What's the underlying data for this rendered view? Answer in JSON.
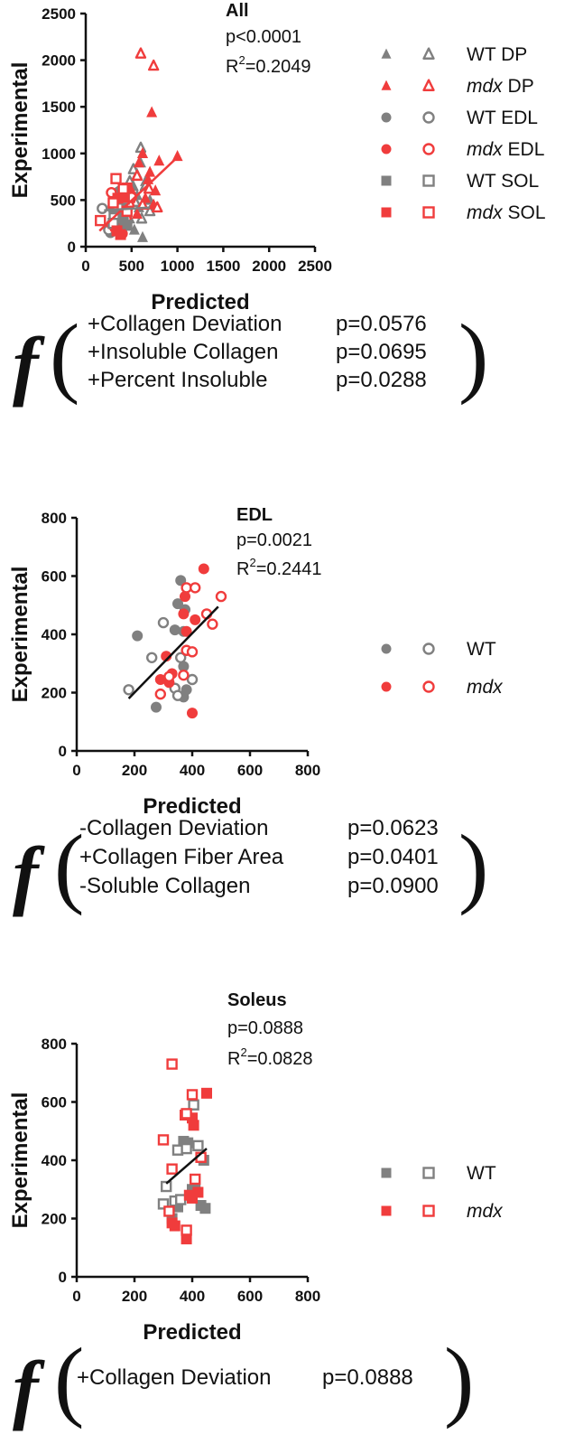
{
  "colors": {
    "wt": "#808080",
    "mdx": "#f03c3c",
    "axis": "#111111"
  },
  "chart_data": [
    {
      "id": "all",
      "type": "scatter",
      "title": "All",
      "p_value": "p<0.0001",
      "r2_label": "R",
      "r2_exp": "2",
      "r2_value": "=0.2049",
      "xlabel": "Predicted",
      "ylabel": "Experimental",
      "xlim": [
        0,
        2500
      ],
      "ylim": [
        0,
        2500
      ],
      "xticks": [
        "0",
        "500",
        "1000",
        "1500",
        "2000",
        "2500"
      ],
      "yticks": [
        "0",
        "500",
        "1000",
        "1500",
        "2000",
        "2500"
      ],
      "fit_lines": [
        {
          "group": "mdx",
          "x": [
            150,
            1000
          ],
          "y": [
            170,
            960
          ]
        },
        {
          "group": "wt",
          "x": [
            200,
            700
          ],
          "y": [
            390,
            420
          ]
        }
      ],
      "legend": [
        {
          "genotype": "WT",
          "rest": " DP",
          "shape": "triangle",
          "group": "wt",
          "italic": false
        },
        {
          "genotype": "mdx",
          "rest": " DP",
          "shape": "triangle",
          "group": "mdx",
          "italic": true
        },
        {
          "genotype": "WT",
          "rest": " EDL",
          "shape": "circle",
          "group": "wt",
          "italic": false
        },
        {
          "genotype": "mdx",
          "rest": " EDL",
          "shape": "circle",
          "group": "mdx",
          "italic": true
        },
        {
          "genotype": "WT",
          "rest": " SOL",
          "shape": "square",
          "group": "wt",
          "italic": false
        },
        {
          "genotype": "mdx",
          "rest": " SOL",
          "shape": "square",
          "group": "mdx",
          "italic": true
        }
      ],
      "series": [
        {
          "name": "WT DP filled",
          "shape": "triangle",
          "group": "wt",
          "filled": true,
          "points": [
            [
              480,
              300
            ],
            [
              520,
              650
            ],
            [
              560,
              550
            ],
            [
              600,
              900
            ],
            [
              620,
              1000
            ],
            [
              650,
              700
            ],
            [
              700,
              500
            ],
            [
              580,
              420
            ],
            [
              450,
              250
            ],
            [
              530,
              180
            ],
            [
              620,
              100
            ],
            [
              560,
              780
            ]
          ]
        },
        {
          "name": "WT DP open",
          "shape": "triangle",
          "group": "wt",
          "filled": false,
          "points": [
            [
              520,
              830
            ],
            [
              600,
              1060
            ],
            [
              650,
              650
            ],
            [
              700,
              380
            ],
            [
              480,
              700
            ],
            [
              540,
              480
            ],
            [
              610,
              300
            ]
          ]
        },
        {
          "name": "mdx DP filled",
          "shape": "triangle",
          "group": "mdx",
          "filled": true,
          "points": [
            [
              580,
              900
            ],
            [
              620,
              1000
            ],
            [
              700,
              800
            ],
            [
              760,
              600
            ],
            [
              720,
              1440
            ],
            [
              800,
              920
            ],
            [
              650,
              520
            ],
            [
              560,
              350
            ],
            [
              680,
              720
            ],
            [
              1000,
              970
            ],
            [
              500,
              600
            ],
            [
              740,
              450
            ]
          ]
        },
        {
          "name": "mdx DP open",
          "shape": "triangle",
          "group": "mdx",
          "filled": false,
          "points": [
            [
              600,
              2070
            ],
            [
              740,
              1940
            ],
            [
              690,
              620
            ],
            [
              560,
              760
            ],
            [
              780,
              420
            ],
            [
              480,
              520
            ],
            [
              620,
              450
            ]
          ]
        },
        {
          "name": "WT EDL filled",
          "shape": "circle",
          "group": "wt",
          "filled": true,
          "points": [
            [
              360,
              590
            ],
            [
              370,
              490
            ],
            [
              300,
              400
            ],
            [
              270,
              150
            ],
            [
              380,
              200
            ],
            [
              420,
              300
            ],
            [
              350,
              250
            ]
          ]
        },
        {
          "name": "WT EDL open",
          "shape": "circle",
          "group": "wt",
          "filled": false,
          "points": [
            [
              180,
              410
            ],
            [
              300,
              440
            ],
            [
              390,
              420
            ],
            [
              450,
              420
            ],
            [
              380,
              240
            ],
            [
              250,
              180
            ],
            [
              360,
              310
            ],
            [
              330,
              260
            ]
          ]
        },
        {
          "name": "mdx EDL filled",
          "shape": "circle",
          "group": "mdx",
          "filled": true,
          "points": [
            [
              440,
              620
            ],
            [
              300,
              560
            ],
            [
              400,
              140
            ],
            [
              360,
              450
            ],
            [
              310,
              260
            ],
            [
              420,
              450
            ],
            [
              280,
              240
            ]
          ]
        },
        {
          "name": "mdx EDL open",
          "shape": "circle",
          "group": "mdx",
          "filled": false,
          "points": [
            [
              500,
              530
            ],
            [
              410,
              560
            ],
            [
              470,
              440
            ],
            [
              320,
              200
            ],
            [
              390,
              350
            ],
            [
              280,
              580
            ],
            [
              440,
              300
            ]
          ]
        },
        {
          "name": "WT SOL filled",
          "shape": "square",
          "group": "wt",
          "filled": true,
          "points": [
            [
              380,
              470
            ],
            [
              450,
              230
            ],
            [
              410,
              330
            ],
            [
              320,
              400
            ],
            [
              430,
              230
            ]
          ]
        },
        {
          "name": "WT SOL open",
          "shape": "square",
          "group": "wt",
          "filled": false,
          "points": [
            [
              400,
              590
            ],
            [
              310,
              310
            ],
            [
              350,
              430
            ],
            [
              300,
              250
            ],
            [
              420,
              510
            ]
          ]
        },
        {
          "name": "mdx SOL filled",
          "shape": "square",
          "group": "mdx",
          "filled": true,
          "points": [
            [
              450,
              630
            ],
            [
              340,
              170
            ],
            [
              380,
              130
            ],
            [
              420,
              530
            ],
            [
              350,
              520
            ]
          ]
        },
        {
          "name": "mdx SOL open",
          "shape": "square",
          "group": "mdx",
          "filled": false,
          "points": [
            [
              330,
              730
            ],
            [
              160,
              280
            ],
            [
              410,
              620
            ],
            [
              300,
              470
            ],
            [
              450,
              380
            ]
          ]
        }
      ],
      "formula": {
        "symbol": "f",
        "terms": [
          {
            "label": "+Collagen Deviation",
            "p": "p=0.0576"
          },
          {
            "label": "+Insoluble Collagen",
            "p": "p=0.0695"
          },
          {
            "label": "+Percent Insoluble",
            "p": "p=0.0288"
          }
        ]
      }
    },
    {
      "id": "edl",
      "type": "scatter",
      "title": "EDL",
      "p_value": "p=0.0021",
      "r2_label": "R",
      "r2_exp": "2",
      "r2_value": "=0.2441",
      "xlabel": "Predicted",
      "ylabel": "Experimental",
      "xlim": [
        0,
        800
      ],
      "ylim": [
        0,
        800
      ],
      "xticks": [
        "0",
        "200",
        "400",
        "600",
        "800"
      ],
      "yticks": [
        "0",
        "200",
        "400",
        "600",
        "800"
      ],
      "fit_lines": [
        {
          "group": "all",
          "x": [
            180,
            490
          ],
          "y": [
            180,
            495
          ]
        }
      ],
      "legend": [
        {
          "genotype": "WT",
          "rest": "",
          "shape": "circle",
          "group": "wt",
          "italic": false
        },
        {
          "genotype": "mdx",
          "rest": "",
          "shape": "circle",
          "group": "mdx",
          "italic": true
        }
      ],
      "series": [
        {
          "name": "WT filled",
          "shape": "circle",
          "group": "wt",
          "filled": true,
          "points": [
            [
              210,
              395
            ],
            [
              360,
              585
            ],
            [
              350,
              505
            ],
            [
              375,
              485
            ],
            [
              340,
              415
            ],
            [
              370,
              410
            ],
            [
              275,
              150
            ],
            [
              370,
              185
            ],
            [
              380,
              210
            ],
            [
              370,
              290
            ]
          ]
        },
        {
          "name": "WT open",
          "shape": "circle",
          "group": "wt",
          "filled": false,
          "points": [
            [
              180,
              210
            ],
            [
              300,
              440
            ],
            [
              260,
              320
            ],
            [
              400,
              245
            ],
            [
              340,
              215
            ],
            [
              350,
              190
            ],
            [
              360,
              320
            ]
          ]
        },
        {
          "name": "mdx filled",
          "shape": "circle",
          "group": "mdx",
          "filled": true,
          "points": [
            [
              440,
              625
            ],
            [
              375,
              530
            ],
            [
              370,
              470
            ],
            [
              310,
              325
            ],
            [
              330,
              265
            ],
            [
              400,
              130
            ],
            [
              410,
              450
            ],
            [
              290,
              245
            ],
            [
              320,
              235
            ],
            [
              380,
              410
            ]
          ]
        },
        {
          "name": "mdx open",
          "shape": "circle",
          "group": "mdx",
          "filled": false,
          "points": [
            [
              500,
              530
            ],
            [
              380,
              560
            ],
            [
              410,
              560
            ],
            [
              470,
              435
            ],
            [
              450,
              470
            ],
            [
              320,
              255
            ],
            [
              380,
              345
            ],
            [
              400,
              340
            ],
            [
              290,
              195
            ],
            [
              370,
              260
            ]
          ]
        }
      ],
      "formula": {
        "symbol": "f",
        "terms": [
          {
            "label": "-Collagen Deviation",
            "p": "p=0.0623"
          },
          {
            "label": "+Collagen Fiber Area",
            "p": "p=0.0401"
          },
          {
            "label": "-Soluble Collagen",
            "p": "p=0.0900"
          }
        ]
      }
    },
    {
      "id": "soleus",
      "type": "scatter",
      "title": "Soleus",
      "p_value": "p=0.0888",
      "r2_label": "R",
      "r2_exp": "2",
      "r2_value": "=0.0828",
      "xlabel": "Predicted",
      "ylabel": "Experimental",
      "xlim": [
        0,
        800
      ],
      "ylim": [
        0,
        800
      ],
      "xticks": [
        "0",
        "200",
        "400",
        "600",
        "800"
      ],
      "yticks": [
        "0",
        "200",
        "400",
        "600",
        "800"
      ],
      "fit_lines": [
        {
          "group": "all",
          "x": [
            310,
            450
          ],
          "y": [
            320,
            440
          ]
        }
      ],
      "legend": [
        {
          "genotype": "WT",
          "rest": "",
          "shape": "square",
          "group": "wt",
          "italic": false
        },
        {
          "genotype": "mdx",
          "rest": "",
          "shape": "square",
          "group": "mdx",
          "italic": true
        }
      ],
      "series": [
        {
          "name": "WT filled",
          "shape": "square",
          "group": "wt",
          "filled": true,
          "points": [
            [
              370,
              465
            ],
            [
              385,
              460
            ],
            [
              440,
              400
            ],
            [
              445,
              235
            ],
            [
              430,
              245
            ],
            [
              410,
              325
            ],
            [
              400,
              300
            ],
            [
              330,
              200
            ],
            [
              350,
              240
            ]
          ]
        },
        {
          "name": "WT open",
          "shape": "square",
          "group": "wt",
          "filled": false,
          "points": [
            [
              405,
              590
            ],
            [
              420,
              450
            ],
            [
              350,
              435
            ],
            [
              310,
              310
            ],
            [
              300,
              250
            ],
            [
              340,
              260
            ],
            [
              360,
              265
            ],
            [
              380,
              440
            ]
          ]
        },
        {
          "name": "mdx filled",
          "shape": "square",
          "group": "mdx",
          "filled": true,
          "points": [
            [
              450,
              630
            ],
            [
              375,
              555
            ],
            [
              400,
              545
            ],
            [
              405,
              520
            ],
            [
              380,
              130
            ],
            [
              340,
              175
            ],
            [
              330,
              185
            ],
            [
              390,
              280
            ],
            [
              400,
              270
            ],
            [
              420,
              290
            ]
          ]
        },
        {
          "name": "mdx open",
          "shape": "square",
          "group": "mdx",
          "filled": false,
          "points": [
            [
              330,
              730
            ],
            [
              400,
              625
            ],
            [
              380,
              560
            ],
            [
              300,
              470
            ],
            [
              330,
              370
            ],
            [
              320,
              225
            ],
            [
              410,
              335
            ],
            [
              380,
              160
            ],
            [
              430,
              410
            ]
          ]
        }
      ],
      "formula": {
        "symbol": "f",
        "terms": [
          {
            "label": "+Collagen Deviation",
            "p": "p=0.0888"
          }
        ]
      }
    }
  ]
}
